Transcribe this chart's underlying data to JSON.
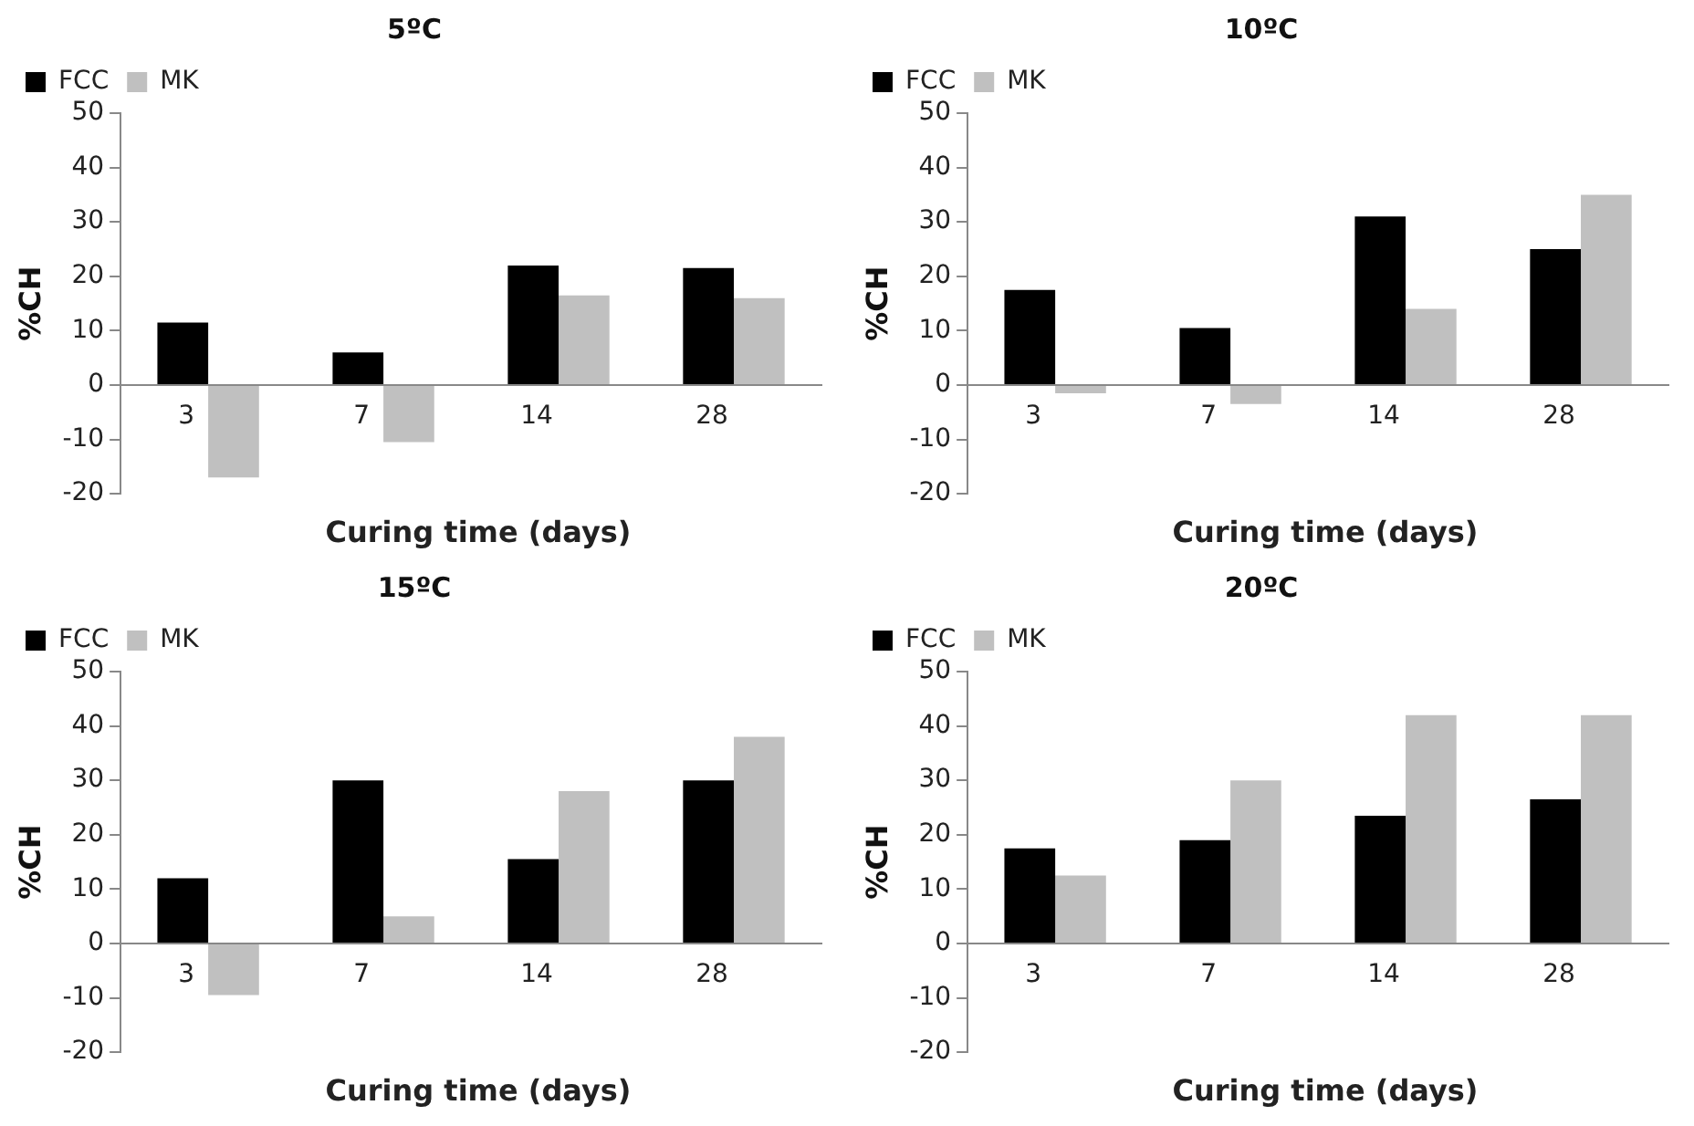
{
  "chart_data": [
    {
      "type": "bar",
      "title": "5ºC",
      "xlabel": "Curing time (days)",
      "ylabel": "%CH",
      "categories": [
        "3",
        "7",
        "14",
        "28"
      ],
      "series": [
        {
          "name": "FCC",
          "color": "#000000",
          "values": [
            11.5,
            6,
            22,
            21.5
          ]
        },
        {
          "name": "MK",
          "color": "#c0c0c0",
          "values": [
            -17,
            -10.5,
            16.5,
            16
          ]
        }
      ],
      "ylim": [
        -20,
        50
      ],
      "yticks": [
        -20,
        -10,
        0,
        10,
        20,
        30,
        40,
        50
      ],
      "legend": "top left",
      "grid": false
    },
    {
      "type": "bar",
      "title": "10ºC",
      "xlabel": "Curing time (days)",
      "ylabel": "%CH",
      "categories": [
        "3",
        "7",
        "14",
        "28"
      ],
      "series": [
        {
          "name": "FCC",
          "color": "#000000",
          "values": [
            17.5,
            10.5,
            31,
            25
          ]
        },
        {
          "name": "MK",
          "color": "#c0c0c0",
          "values": [
            -1.5,
            -3.5,
            14,
            35
          ]
        }
      ],
      "ylim": [
        -20,
        50
      ],
      "yticks": [
        -20,
        -10,
        0,
        10,
        20,
        30,
        40,
        50
      ],
      "legend": "top left",
      "grid": false
    },
    {
      "type": "bar",
      "title": "15ºC",
      "xlabel": "Curing time (days)",
      "ylabel": "%CH",
      "categories": [
        "3",
        "7",
        "14",
        "28"
      ],
      "series": [
        {
          "name": "FCC",
          "color": "#000000",
          "values": [
            12,
            30,
            15.5,
            30
          ]
        },
        {
          "name": "MK",
          "color": "#c0c0c0",
          "values": [
            -9.5,
            5,
            28,
            38
          ]
        }
      ],
      "ylim": [
        -20,
        50
      ],
      "yticks": [
        -20,
        -10,
        0,
        10,
        20,
        30,
        40,
        50
      ],
      "legend": "top left",
      "grid": false
    },
    {
      "type": "bar",
      "title": "20ºC",
      "xlabel": "Curing time (days)",
      "ylabel": "%CH",
      "categories": [
        "3",
        "7",
        "14",
        "28"
      ],
      "series": [
        {
          "name": "FCC",
          "color": "#000000",
          "values": [
            17.5,
            19,
            23.5,
            26.5
          ]
        },
        {
          "name": "MK",
          "color": "#c0c0c0",
          "values": [
            12.5,
            30,
            42,
            42
          ]
        }
      ],
      "ylim": [
        -20,
        50
      ],
      "yticks": [
        -20,
        -10,
        0,
        10,
        20,
        30,
        40,
        50
      ],
      "legend": "top left",
      "grid": false
    }
  ]
}
